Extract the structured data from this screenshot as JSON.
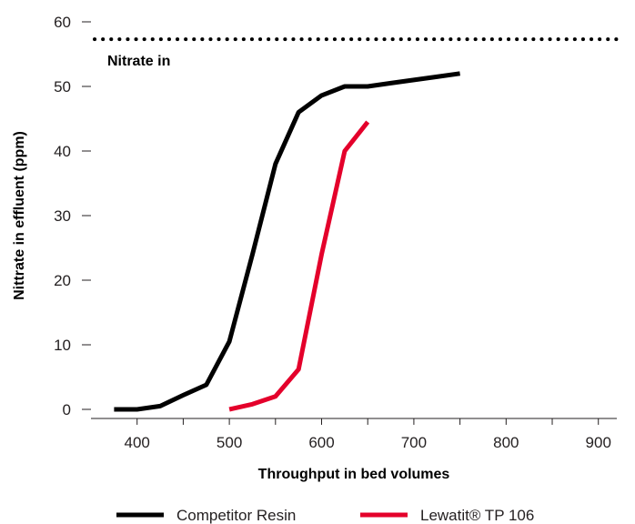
{
  "chart_data": {
    "type": "line",
    "title": "",
    "xlabel": "Throughput in bed volumes",
    "ylabel": "Nittrate in effluent (ppm)",
    "xlim": [
      350,
      920
    ],
    "ylim": [
      0,
      60
    ],
    "x_ticks": [
      400,
      500,
      600,
      700,
      800,
      900
    ],
    "x_ticks_unlabeled": [
      450,
      550,
      650,
      750,
      850
    ],
    "y_ticks": [
      0,
      10,
      20,
      30,
      40,
      50,
      60
    ],
    "grid": false,
    "legend_position": "bottom",
    "reference_line": {
      "label": "Nitrate in",
      "y": 57.3,
      "style": "dotted"
    },
    "series": [
      {
        "name": "Competitor Resin",
        "color": "#000000",
        "points": [
          [
            375,
            0
          ],
          [
            400,
            0
          ],
          [
            425,
            0.5
          ],
          [
            450,
            2.2
          ],
          [
            475,
            3.8
          ],
          [
            500,
            10.5
          ],
          [
            525,
            24
          ],
          [
            550,
            38
          ],
          [
            575,
            46
          ],
          [
            600,
            48.6
          ],
          [
            625,
            50
          ],
          [
            650,
            50
          ],
          [
            675,
            50.5
          ],
          [
            700,
            51
          ],
          [
            725,
            51.5
          ],
          [
            750,
            52
          ]
        ]
      },
      {
        "name": "Lewatit® TP 106",
        "color": "#e4002b",
        "points": [
          [
            500,
            0
          ],
          [
            525,
            0.8
          ],
          [
            550,
            2
          ],
          [
            575,
            6.2
          ],
          [
            600,
            24
          ],
          [
            625,
            40
          ],
          [
            650,
            44.5
          ]
        ]
      }
    ]
  }
}
